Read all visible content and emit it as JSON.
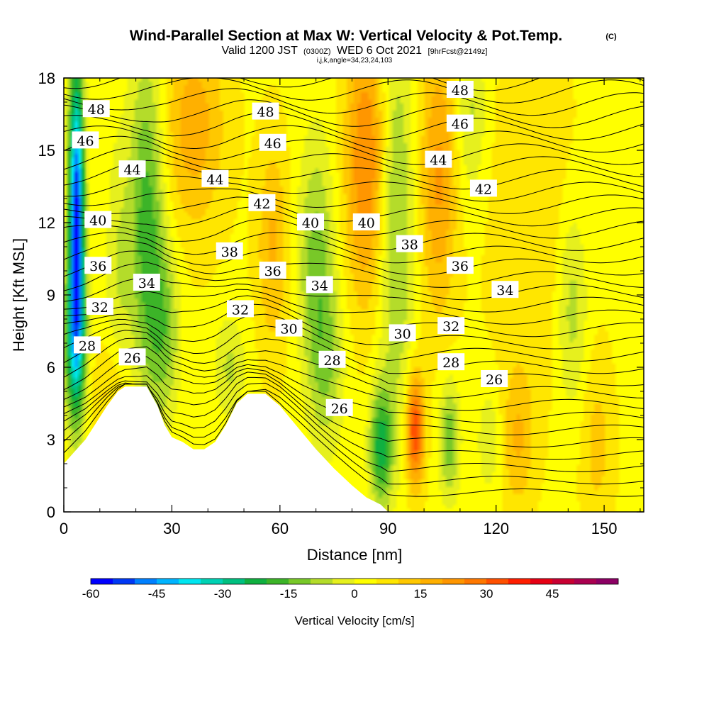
{
  "chart_data": {
    "type": "heatmap",
    "title": "Wind-Parallel Section at Max W: Vertical Velocity & Pot.Temp.",
    "title_mark": "(C)",
    "subtitle": {
      "valid": "Valid 1200 JST",
      "utc": "(0300Z)",
      "date": "WED 6 Oct 2021",
      "fcst": "[9hrFcst@2149z]"
    },
    "subtitle2": "i,j,k,angle=34,23,24,103",
    "xlabel": "Distance [nm]",
    "ylabel": "Height [Kft MSL]",
    "xlim": [
      0,
      161
    ],
    "ylim": [
      0,
      18
    ],
    "xticks": [
      "0",
      "30",
      "60",
      "90",
      "120",
      "150"
    ],
    "xtick_values": [
      0,
      30,
      60,
      90,
      120,
      150
    ],
    "yticks": [
      "0",
      "3",
      "6",
      "9",
      "12",
      "15",
      "18"
    ],
    "ytick_values": [
      0,
      3,
      6,
      9,
      12,
      15,
      18
    ],
    "colorbar": {
      "label": "Vertical Velocity [cm/s]",
      "min": -60,
      "max": 55,
      "step": 5,
      "tick_labels": [
        "-60",
        "-45",
        "-30",
        "-15",
        "0",
        "15",
        "30",
        "45"
      ],
      "tick_values": [
        -60,
        -45,
        -30,
        -15,
        0,
        15,
        30,
        45
      ],
      "colors": [
        "#0000ff",
        "#0038f5",
        "#0080ff",
        "#00b4ff",
        "#00e6f0",
        "#00d2b4",
        "#00c080",
        "#10b040",
        "#3cb428",
        "#78c828",
        "#b4dc2a",
        "#e6f01e",
        "#ffff00",
        "#ffe600",
        "#ffc800",
        "#ffb000",
        "#ff9600",
        "#ff7800",
        "#ff5000",
        "#ff1e00",
        "#e60014",
        "#c80032",
        "#aa0050",
        "#8c0064"
      ]
    },
    "series": [
      {
        "kind": "terrain",
        "points": [
          [
            0,
            2
          ],
          [
            3,
            2.5
          ],
          [
            6,
            3
          ],
          [
            9,
            3.7
          ],
          [
            12,
            4.4
          ],
          [
            15,
            5
          ],
          [
            17,
            5.2
          ],
          [
            23,
            5.2
          ],
          [
            26,
            4.4
          ],
          [
            28,
            3.6
          ],
          [
            30,
            3.1
          ],
          [
            33,
            2.9
          ],
          [
            36,
            2.6
          ],
          [
            39,
            2.6
          ],
          [
            42,
            2.9
          ],
          [
            45,
            3.6
          ],
          [
            48,
            4.5
          ],
          [
            51,
            4.9
          ],
          [
            56,
            4.9
          ],
          [
            60,
            4.4
          ],
          [
            65,
            3.5
          ],
          [
            70,
            2.6
          ],
          [
            75,
            1.8
          ],
          [
            80,
            1.1
          ],
          [
            84,
            0.6
          ],
          [
            88,
            0.3
          ],
          [
            90,
            0
          ]
        ]
      },
      {
        "kind": "velocity_feature",
        "x": 3.5,
        "y": 12,
        "sx": 1.5,
        "sy": 4.5,
        "w": -60
      },
      {
        "kind": "velocity_feature",
        "x": 3,
        "y": 7,
        "sx": 2.5,
        "sy": 2.2,
        "w": -22
      },
      {
        "kind": "velocity_feature",
        "x": 23,
        "y": 12,
        "sx": 3.5,
        "sy": 5,
        "w": -22
      },
      {
        "kind": "velocity_feature",
        "x": 28,
        "y": 7.5,
        "sx": 3,
        "sy": 2.5,
        "w": -14
      },
      {
        "kind": "velocity_feature",
        "x": 15,
        "y": 10,
        "sx": 2.5,
        "sy": 4,
        "w": -8
      },
      {
        "kind": "velocity_feature",
        "x": 36,
        "y": 16,
        "sx": 6,
        "sy": 3,
        "w": 14
      },
      {
        "kind": "velocity_feature",
        "x": 58,
        "y": 11,
        "sx": 3,
        "sy": 3,
        "w": 12
      },
      {
        "kind": "velocity_feature",
        "x": 70,
        "y": 10.5,
        "sx": 3.5,
        "sy": 3.5,
        "w": -16
      },
      {
        "kind": "velocity_feature",
        "x": 73,
        "y": 6,
        "sx": 3.5,
        "sy": 2.5,
        "w": -12
      },
      {
        "kind": "velocity_feature",
        "x": 84,
        "y": 14.5,
        "sx": 4,
        "sy": 4,
        "w": 22
      },
      {
        "kind": "velocity_feature",
        "x": 92,
        "y": 12,
        "sx": 3.5,
        "sy": 6,
        "w": -16
      },
      {
        "kind": "velocity_feature",
        "x": 88,
        "y": 2.7,
        "sx": 2.2,
        "sy": 1.7,
        "w": -26
      },
      {
        "kind": "velocity_feature",
        "x": 97.5,
        "y": 3.4,
        "sx": 1.7,
        "sy": 1.6,
        "w": 32
      },
      {
        "kind": "velocity_feature",
        "x": 107,
        "y": 3,
        "sx": 2,
        "sy": 1.7,
        "w": -18
      },
      {
        "kind": "velocity_feature",
        "x": 118,
        "y": 3,
        "sx": 2.4,
        "sy": 1.7,
        "w": -8
      },
      {
        "kind": "velocity_feature",
        "x": 104,
        "y": 14,
        "sx": 3.5,
        "sy": 4,
        "w": 17
      },
      {
        "kind": "velocity_feature",
        "x": 113,
        "y": 16.5,
        "sx": 3,
        "sy": 2.5,
        "w": -10
      },
      {
        "kind": "velocity_feature",
        "x": 141,
        "y": 8.5,
        "sx": 3,
        "sy": 3,
        "w": -12
      },
      {
        "kind": "velocity_feature",
        "x": 126,
        "y": 3,
        "sx": 3,
        "sy": 2,
        "w": 11
      },
      {
        "kind": "velocity_feature",
        "x": 148,
        "y": 2.8,
        "sx": 3,
        "sy": 2.5,
        "w": 8
      },
      {
        "kind": "velocity_feature",
        "x": 46,
        "y": 6,
        "sx": 3,
        "sy": 1.5,
        "w": -10
      },
      {
        "kind": "velocity_feature",
        "x": 13,
        "y": 5,
        "sx": 4,
        "sy": 1.5,
        "w": 8
      },
      {
        "kind": "velocity_feature",
        "x": 130,
        "y": 12,
        "sx": 8,
        "sy": 5,
        "w": 6
      }
    ],
    "contour_labels": [
      {
        "text": "48",
        "x": 9,
        "y": 16.7
      },
      {
        "text": "46",
        "x": 6,
        "y": 15.4
      },
      {
        "text": "44",
        "x": 19,
        "y": 14.2
      },
      {
        "text": "40",
        "x": 9.5,
        "y": 12.1
      },
      {
        "text": "36",
        "x": 9.5,
        "y": 10.2
      },
      {
        "text": "34",
        "x": 23,
        "y": 9.5
      },
      {
        "text": "32",
        "x": 10,
        "y": 8.5
      },
      {
        "text": "28",
        "x": 6.5,
        "y": 6.9
      },
      {
        "text": "26",
        "x": 19,
        "y": 6.4
      },
      {
        "text": "48",
        "x": 56,
        "y": 16.6
      },
      {
        "text": "46",
        "x": 58,
        "y": 15.3
      },
      {
        "text": "44",
        "x": 42,
        "y": 13.8
      },
      {
        "text": "42",
        "x": 55,
        "y": 12.8
      },
      {
        "text": "38",
        "x": 46,
        "y": 10.8
      },
      {
        "text": "36",
        "x": 58,
        "y": 10
      },
      {
        "text": "32",
        "x": 49,
        "y": 8.4
      },
      {
        "text": "30",
        "x": 62.5,
        "y": 7.6
      },
      {
        "text": "40",
        "x": 68.5,
        "y": 12
      },
      {
        "text": "34",
        "x": 71,
        "y": 9.4
      },
      {
        "text": "28",
        "x": 74.5,
        "y": 6.3
      },
      {
        "text": "26",
        "x": 76.5,
        "y": 4.3
      },
      {
        "text": "40",
        "x": 84,
        "y": 12
      },
      {
        "text": "38",
        "x": 96,
        "y": 11.1
      },
      {
        "text": "30",
        "x": 94,
        "y": 7.4
      },
      {
        "text": "48",
        "x": 110,
        "y": 17.5
      },
      {
        "text": "46",
        "x": 110,
        "y": 16.1
      },
      {
        "text": "44",
        "x": 104,
        "y": 14.6
      },
      {
        "text": "42",
        "x": 116.5,
        "y": 13.4
      },
      {
        "text": "36",
        "x": 110,
        "y": 10.2
      },
      {
        "text": "34",
        "x": 122.5,
        "y": 9.2
      },
      {
        "text": "32",
        "x": 107.5,
        "y": 7.7
      },
      {
        "text": "28",
        "x": 107.5,
        "y": 6.2
      },
      {
        "text": "26",
        "x": 119.5,
        "y": 5.5
      }
    ]
  }
}
